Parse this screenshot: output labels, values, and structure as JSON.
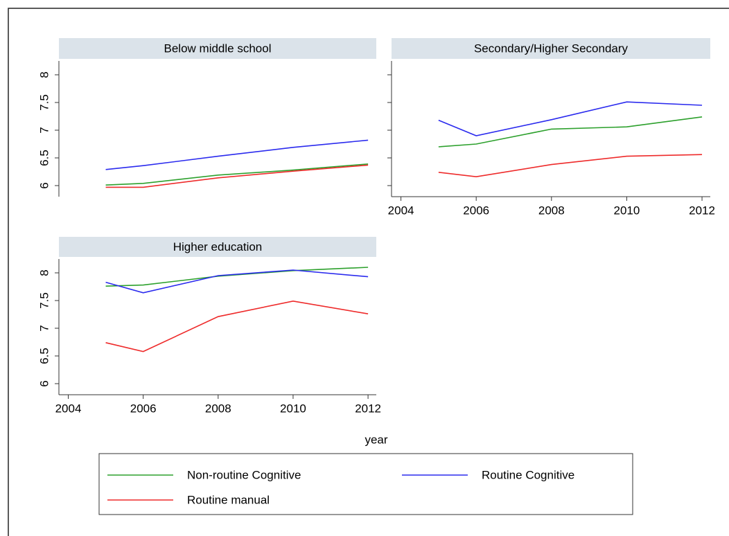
{
  "chart_data": [
    {
      "type": "line",
      "title": "Below middle school",
      "x": [
        2005,
        2006,
        2008,
        2010,
        2012
      ],
      "series": [
        {
          "name": "Non-routine Cognitive",
          "color": "#2ca02c",
          "values": [
            6.01,
            6.04,
            6.19,
            6.28,
            6.39
          ]
        },
        {
          "name": "Routine Cognitive",
          "color": "#2a2aee",
          "values": [
            6.29,
            6.36,
            6.53,
            6.69,
            6.82
          ]
        },
        {
          "name": "Routine manual",
          "color": "#ee2a2a",
          "values": [
            5.97,
            5.97,
            6.14,
            6.26,
            6.37
          ]
        }
      ],
      "xlim": [
        2003.75,
        2012.22
      ],
      "ylim": [
        5.8,
        8.25
      ],
      "yticks": [
        6,
        6.5,
        7,
        7.5,
        8
      ]
    },
    {
      "type": "line",
      "title": "Secondary/Higher Secondary",
      "x": [
        2005,
        2006,
        2008,
        2010,
        2012
      ],
      "series": [
        {
          "name": "Non-routine Cognitive",
          "color": "#2ca02c",
          "values": [
            6.7,
            6.75,
            7.02,
            7.06,
            7.24
          ]
        },
        {
          "name": "Routine Cognitive",
          "color": "#2a2aee",
          "values": [
            7.18,
            6.9,
            7.19,
            7.51,
            7.45
          ]
        },
        {
          "name": "Routine manual",
          "color": "#ee2a2a",
          "values": [
            6.24,
            6.16,
            6.38,
            6.53,
            6.56
          ]
        }
      ],
      "xlim": [
        2003.75,
        2012.22
      ],
      "ylim": [
        5.8,
        8.25
      ],
      "xticks": [
        2004,
        2006,
        2008,
        2010,
        2012
      ]
    },
    {
      "type": "line",
      "title": "Higher education",
      "xlabel": "year",
      "x": [
        2005,
        2006,
        2008,
        2010,
        2012
      ],
      "series": [
        {
          "name": "Non-routine Cognitive",
          "color": "#2ca02c",
          "values": [
            7.76,
            7.78,
            7.94,
            8.04,
            8.1
          ]
        },
        {
          "name": "Routine Cognitive",
          "color": "#2a2aee",
          "values": [
            7.83,
            7.64,
            7.95,
            8.05,
            7.93
          ]
        },
        {
          "name": "Routine manual",
          "color": "#ee2a2a",
          "values": [
            6.74,
            6.58,
            7.21,
            7.49,
            7.26
          ]
        }
      ],
      "xlim": [
        2003.75,
        2012.22
      ],
      "ylim": [
        5.8,
        8.25
      ],
      "xticks": [
        2004,
        2006,
        2008,
        2010,
        2012
      ],
      "yticks": [
        6,
        6.5,
        7,
        7.5,
        8
      ]
    }
  ]
}
